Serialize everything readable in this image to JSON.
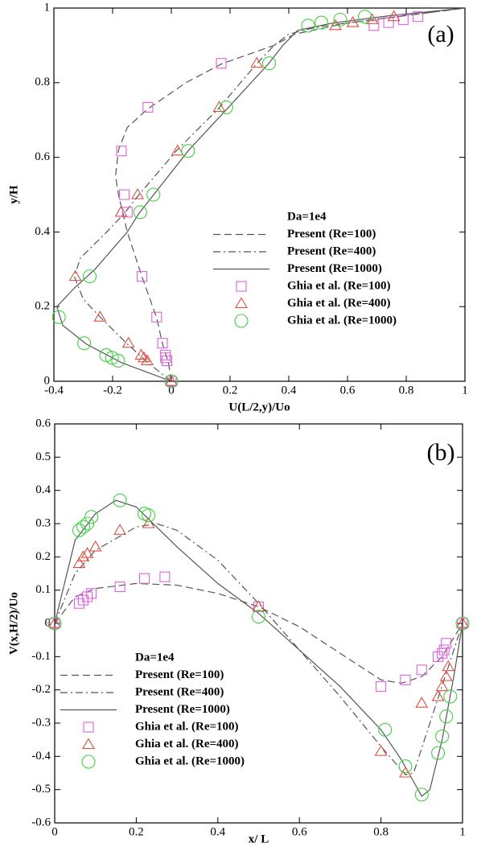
{
  "chart_data": [
    {
      "type": "line",
      "annotation": "(a)",
      "xlabel": "U(L/2,y)/Uo",
      "ylabel": "y/H",
      "legend_title": "Da=1e4",
      "xlim": [
        -0.4,
        1
      ],
      "ylim": [
        0,
        1
      ],
      "xticks": [
        -0.4,
        -0.2,
        0,
        0.2,
        0.4,
        0.6,
        0.8,
        1
      ],
      "yticks": [
        0,
        0.2,
        0.4,
        0.6,
        0.8,
        1
      ],
      "series": [
        {
          "name": "Present (Re=100)",
          "style": "dashed",
          "color": "#555555",
          "x": [
            0,
            -0.01,
            -0.03,
            -0.05,
            -0.1,
            -0.15,
            -0.165,
            -0.18,
            -0.19,
            -0.18,
            -0.15,
            -0.08,
            0.05,
            0.17,
            0.35,
            0.42,
            0.6,
            0.8,
            1
          ],
          "values": [
            0,
            0.05,
            0.1,
            0.17,
            0.28,
            0.4,
            0.45,
            0.5,
            0.55,
            0.62,
            0.68,
            0.73,
            0.8,
            0.85,
            0.9,
            0.93,
            0.96,
            0.98,
            1
          ]
        },
        {
          "name": "Present (Re=400)",
          "style": "dashdot",
          "color": "#555555",
          "x": [
            0,
            -0.08,
            -0.15,
            -0.24,
            -0.3,
            -0.33,
            -0.31,
            -0.22,
            -0.16,
            -0.11,
            0.02,
            0.16,
            0.29,
            0.35,
            0.4,
            0.5,
            0.7,
            0.9,
            1
          ],
          "values": [
            0,
            0.05,
            0.1,
            0.17,
            0.22,
            0.28,
            0.33,
            0.4,
            0.45,
            0.5,
            0.62,
            0.73,
            0.85,
            0.9,
            0.93,
            0.95,
            0.97,
            0.99,
            1
          ]
        },
        {
          "name": "Present (Re=1000)",
          "style": "solid",
          "color": "#555555",
          "x": [
            0,
            -0.17,
            -0.29,
            -0.37,
            -0.39,
            -0.33,
            -0.26,
            -0.15,
            -0.11,
            -0.06,
            0.06,
            0.19,
            0.33,
            0.38,
            0.43,
            0.55,
            0.75,
            1
          ],
          "values": [
            0,
            0.05,
            0.1,
            0.15,
            0.2,
            0.25,
            0.3,
            0.4,
            0.45,
            0.5,
            0.62,
            0.73,
            0.85,
            0.9,
            0.94,
            0.96,
            0.98,
            1
          ]
        },
        {
          "name": "Ghia et al. (Re=100)",
          "style": "square",
          "color": "#e060e0",
          "x": [
            0.84,
            0.79,
            0.74,
            0.69,
            0.17,
            -0.08,
            -0.17,
            -0.16,
            -0.15,
            -0.1,
            -0.05,
            -0.03,
            -0.02,
            -0.02,
            -0.015,
            0
          ],
          "values": [
            0.977,
            0.969,
            0.961,
            0.953,
            0.852,
            0.734,
            0.617,
            0.5,
            0.453,
            0.281,
            0.172,
            0.102,
            0.07,
            0.063,
            0.055,
            0
          ]
        },
        {
          "name": "Ghia et al. (Re=400)",
          "style": "triangle",
          "color": "#d9503f",
          "x": [
            0.758,
            0.684,
            0.618,
            0.559,
            0.291,
            0.163,
            0.021,
            -0.115,
            -0.171,
            -0.327,
            -0.243,
            -0.146,
            -0.103,
            -0.093,
            -0.082,
            0
          ],
          "values": [
            0.977,
            0.969,
            0.961,
            0.953,
            0.852,
            0.734,
            0.617,
            0.5,
            0.453,
            0.281,
            0.172,
            0.102,
            0.07,
            0.063,
            0.055,
            0
          ]
        },
        {
          "name": "Ghia et al. (Re=1000)",
          "style": "circle",
          "color": "#40d040",
          "x": [
            0.659,
            0.575,
            0.511,
            0.466,
            0.333,
            0.187,
            0.057,
            -0.061,
            -0.106,
            -0.278,
            -0.383,
            -0.297,
            -0.222,
            -0.202,
            -0.181,
            0
          ],
          "values": [
            0.977,
            0.969,
            0.961,
            0.953,
            0.852,
            0.734,
            0.617,
            0.5,
            0.453,
            0.281,
            0.172,
            0.102,
            0.07,
            0.063,
            0.055,
            0
          ]
        }
      ]
    },
    {
      "type": "line",
      "annotation": "(b)",
      "xlabel": "x/ L",
      "ylabel": "V(x,H/2)/Uo",
      "legend_title": "Da=1e4",
      "xlim": [
        0,
        1
      ],
      "ylim": [
        -0.6,
        0.6
      ],
      "xticks": [
        0,
        0.2,
        0.4,
        0.6,
        0.8,
        1
      ],
      "yticks": [
        -0.6,
        -0.5,
        -0.4,
        -0.3,
        -0.2,
        -0.1,
        0,
        0.1,
        0.2,
        0.3,
        0.4,
        0.5,
        0.6
      ],
      "series": [
        {
          "name": "Present (Re=100)",
          "style": "dashed",
          "color": "#555555",
          "x": [
            0,
            0.05,
            0.1,
            0.2,
            0.3,
            0.4,
            0.5,
            0.6,
            0.7,
            0.8,
            0.85,
            0.9,
            0.95,
            1
          ],
          "values": [
            0,
            0.08,
            0.105,
            0.12,
            0.115,
            0.09,
            0.05,
            -0.01,
            -0.09,
            -0.17,
            -0.18,
            -0.16,
            -0.1,
            0
          ]
        },
        {
          "name": "Present (Re=400)",
          "style": "dashdot",
          "color": "#555555",
          "x": [
            0,
            0.05,
            0.1,
            0.2,
            0.25,
            0.3,
            0.4,
            0.5,
            0.6,
            0.7,
            0.8,
            0.86,
            0.88,
            0.92,
            0.96,
            1
          ],
          "values": [
            0,
            0.15,
            0.22,
            0.29,
            0.3,
            0.28,
            0.19,
            0.06,
            -0.08,
            -0.22,
            -0.37,
            -0.455,
            -0.45,
            -0.3,
            -0.15,
            0
          ]
        },
        {
          "name": "Present (Re=1000)",
          "style": "solid",
          "color": "#555555",
          "x": [
            0,
            0.05,
            0.1,
            0.15,
            0.2,
            0.3,
            0.4,
            0.5,
            0.6,
            0.7,
            0.8,
            0.85,
            0.9,
            0.92,
            0.95,
            0.98,
            1
          ],
          "values": [
            0,
            0.25,
            0.33,
            0.37,
            0.35,
            0.23,
            0.12,
            0.03,
            -0.08,
            -0.19,
            -0.32,
            -0.41,
            -0.52,
            -0.5,
            -0.35,
            -0.15,
            0
          ]
        },
        {
          "name": "Ghia et al. (Re=100)",
          "style": "square",
          "color": "#e060e0",
          "x": [
            0,
            0.06,
            0.07,
            0.08,
            0.09,
            0.16,
            0.22,
            0.27,
            0.5,
            0.8,
            0.86,
            0.9,
            0.94,
            0.95,
            0.955,
            0.96,
            1
          ],
          "values": [
            0,
            0.06,
            0.07,
            0.08,
            0.09,
            0.11,
            0.135,
            0.14,
            0.05,
            -0.19,
            -0.17,
            -0.14,
            -0.1,
            -0.09,
            -0.08,
            -0.06,
            0
          ]
        },
        {
          "name": "Ghia et al. (Re=400)",
          "style": "triangle",
          "color": "#d9503f",
          "x": [
            0,
            0.06,
            0.07,
            0.08,
            0.1,
            0.16,
            0.23,
            0.5,
            0.8,
            0.86,
            0.9,
            0.94,
            0.95,
            0.96,
            0.965,
            1
          ],
          "values": [
            0,
            0.18,
            0.2,
            0.21,
            0.23,
            0.28,
            0.3,
            0.05,
            -0.385,
            -0.45,
            -0.24,
            -0.22,
            -0.19,
            -0.16,
            -0.13,
            0
          ]
        },
        {
          "name": "Ghia et al. (Re=1000)",
          "style": "circle",
          "color": "#40d040",
          "x": [
            0,
            0.06,
            0.07,
            0.08,
            0.09,
            0.16,
            0.22,
            0.23,
            0.5,
            0.81,
            0.86,
            0.9,
            0.94,
            0.95,
            0.96,
            0.97,
            1
          ],
          "values": [
            0,
            0.28,
            0.29,
            0.3,
            0.32,
            0.37,
            0.33,
            0.325,
            0.02,
            -0.32,
            -0.43,
            -0.515,
            -0.39,
            -0.34,
            -0.28,
            -0.22,
            0
          ]
        }
      ]
    }
  ]
}
